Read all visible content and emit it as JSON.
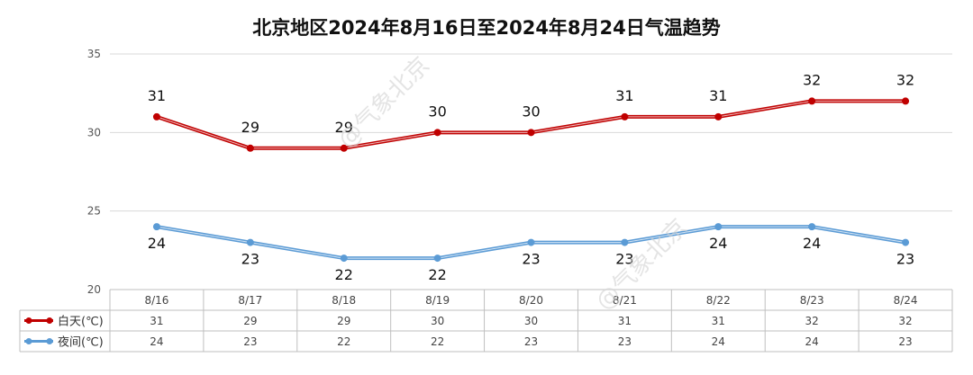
{
  "chart_data": {
    "type": "line",
    "title": "北京地区2024年8月16日至2024年8月24日气温趋势",
    "categories": [
      "8/16",
      "8/17",
      "8/18",
      "8/19",
      "8/20",
      "8/21",
      "8/22",
      "8/23",
      "8/24"
    ],
    "series": [
      {
        "name": "白天(℃)",
        "values": [
          31,
          29,
          29,
          30,
          30,
          31,
          31,
          32,
          32
        ],
        "color": "#c00000",
        "label_position": "above"
      },
      {
        "name": "夜间(℃)",
        "values": [
          24,
          23,
          22,
          22,
          23,
          23,
          24,
          24,
          23
        ],
        "color": "#5b9bd5",
        "label_position": "below"
      }
    ],
    "ylim": [
      20,
      35
    ],
    "yticks": [
      "20",
      "25",
      "30",
      "35"
    ],
    "grid": true,
    "legend": "data-table-left",
    "watermark": "@气象北京"
  }
}
